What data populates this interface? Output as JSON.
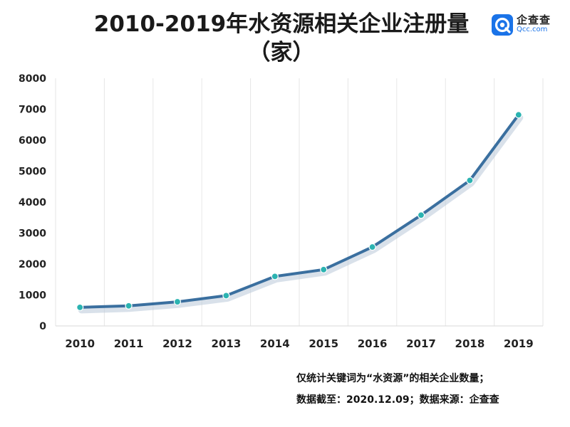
{
  "header": {
    "title_line1": "2010-2019年水资源相关企业注册量",
    "title_line2": "（家）"
  },
  "logo": {
    "name_cn": "企查查",
    "name_en": "Qcc.com",
    "icon": "qcc-logo-icon",
    "color": "#1a73e8"
  },
  "footer": {
    "note_line1": "仅统计关键词为“水资源”的相关企业数量；",
    "note_line2": "数据截至：2020.12.09；数据来源：企查查"
  },
  "chart_data": {
    "type": "line",
    "title": "2010-2019年水资源相关企业注册量（家）",
    "xlabel": "",
    "ylabel": "",
    "x": [
      "2010",
      "2011",
      "2012",
      "2013",
      "2014",
      "2015",
      "2016",
      "2017",
      "2018",
      "2019"
    ],
    "series": [
      {
        "values": [
          600,
          650,
          780,
          980,
          1600,
          1820,
          2550,
          3580,
          4700,
          6820
        ],
        "color": "#3a6f9f",
        "marker_color": "#2bb3b1"
      }
    ],
    "ylim": [
      0,
      8000
    ],
    "yticks": [
      0,
      1000,
      2000,
      3000,
      4000,
      5000,
      6000,
      7000,
      8000
    ],
    "grid": "vertical",
    "legend": "none"
  }
}
